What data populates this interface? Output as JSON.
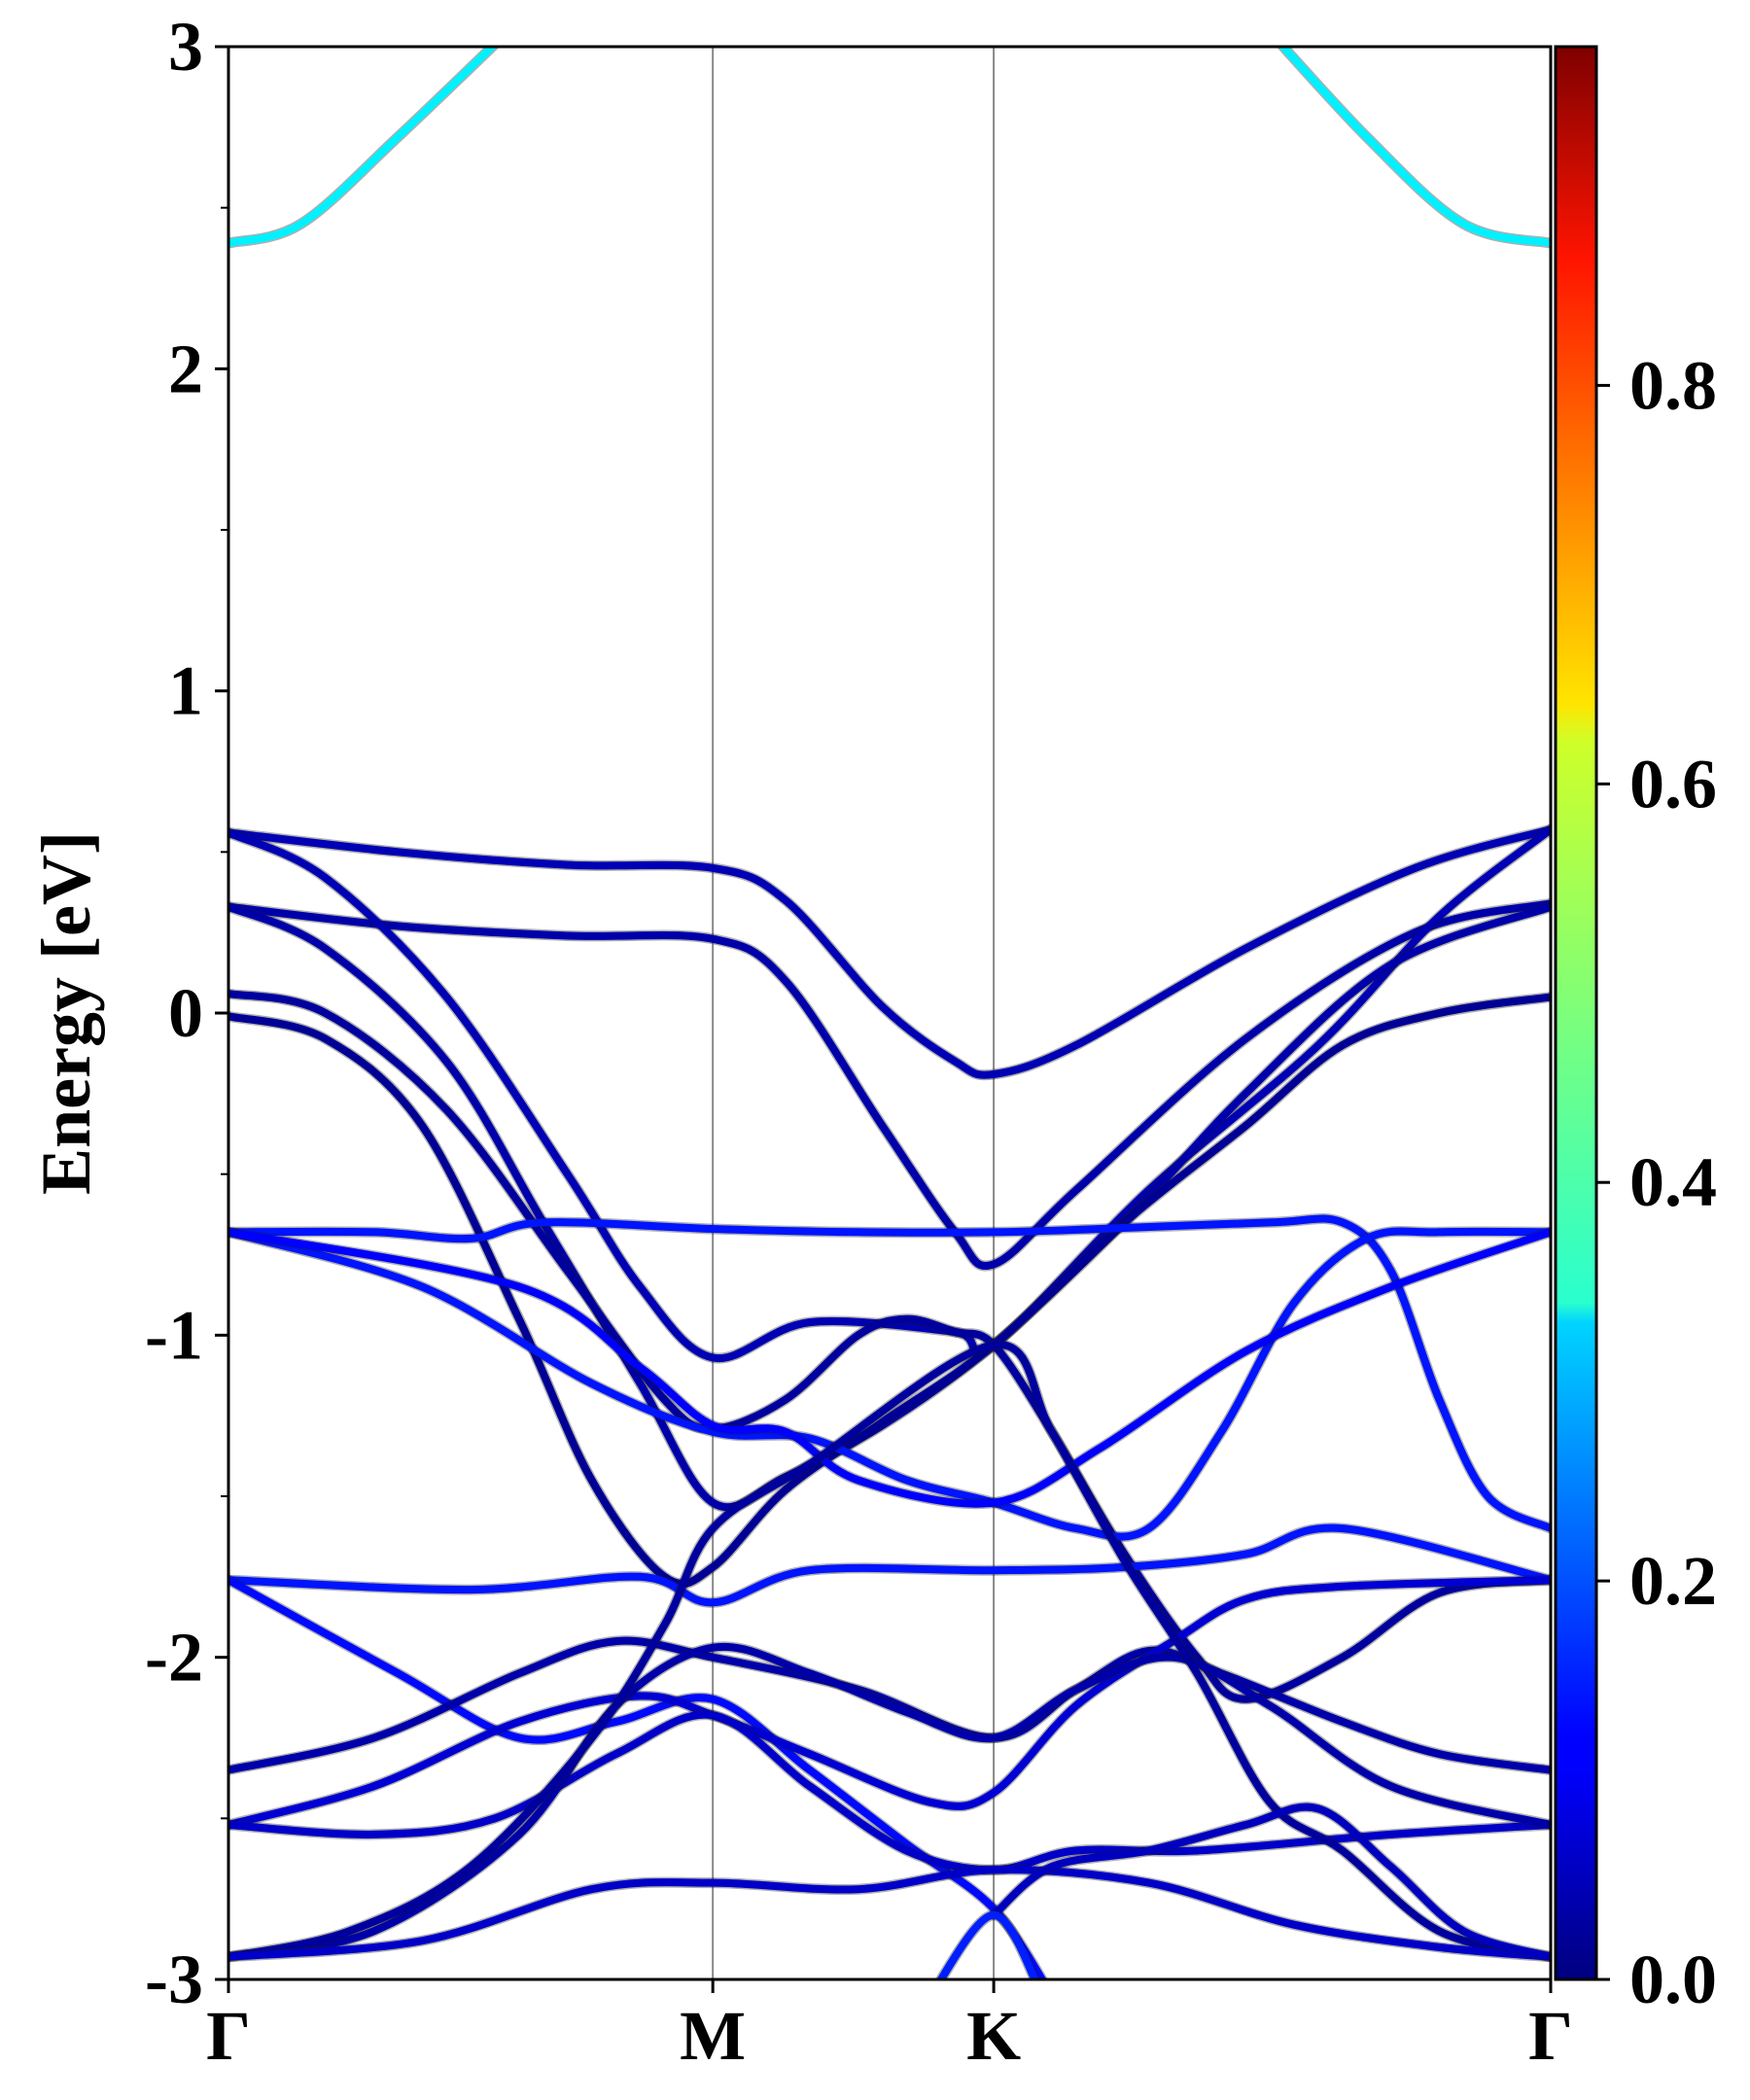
{
  "chart_data": {
    "type": "line",
    "title": "",
    "xlabel": "",
    "ylabel": "Energy [eV]",
    "x_ticks": [
      "Γ",
      "M",
      "K",
      "Γ"
    ],
    "x_tick_positions": [
      0,
      1,
      1.58,
      2.73
    ],
    "xlim": [
      0,
      2.73
    ],
    "y_ticks": [
      "3",
      "2",
      "1",
      "0",
      "-1",
      "-2",
      "-3"
    ],
    "ylim": [
      -3,
      3
    ],
    "colorbar": {
      "ticks": [
        "0.0",
        "0.2",
        "0.4",
        "0.6",
        "0.8"
      ],
      "range": [
        0,
        0.97
      ],
      "colormap": "jet"
    },
    "series": [
      {
        "w": 0.35,
        "points": [
          [
            0,
            2.39
          ],
          [
            0.15,
            2.45
          ],
          [
            0.35,
            2.72
          ],
          [
            0.6,
            3.08
          ]
        ]
      },
      {
        "w": 0.35,
        "points": [
          [
            2.13,
            3.08
          ],
          [
            2.35,
            2.72
          ],
          [
            2.55,
            2.45
          ],
          [
            2.73,
            2.39
          ]
        ]
      },
      {
        "w": 0.05,
        "points": [
          [
            0,
            0.56
          ],
          [
            0.35,
            0.5
          ],
          [
            0.7,
            0.46
          ],
          [
            1,
            0.45
          ],
          [
            1.15,
            0.35
          ],
          [
            1.35,
            0.02
          ],
          [
            1.5,
            -0.15
          ],
          [
            1.58,
            -0.19
          ],
          [
            1.75,
            -0.1
          ],
          [
            2.1,
            0.2
          ],
          [
            2.45,
            0.45
          ],
          [
            2.73,
            0.57
          ]
        ]
      },
      {
        "w": 0.04,
        "points": [
          [
            0,
            0.33
          ],
          [
            0.35,
            0.27
          ],
          [
            0.7,
            0.24
          ],
          [
            1,
            0.23
          ],
          [
            1.15,
            0.1
          ],
          [
            1.35,
            -0.35
          ],
          [
            1.5,
            -0.68
          ],
          [
            1.58,
            -0.78
          ],
          [
            1.75,
            -0.55
          ],
          [
            2.1,
            -0.08
          ],
          [
            2.45,
            0.25
          ],
          [
            2.73,
            0.34
          ]
        ]
      },
      {
        "w": 0.05,
        "points": [
          [
            0,
            0.56
          ],
          [
            0.2,
            0.42
          ],
          [
            0.45,
            0.05
          ],
          [
            0.7,
            -0.5
          ],
          [
            0.85,
            -0.85
          ],
          [
            1,
            -1.07
          ],
          [
            1.2,
            -0.96
          ],
          [
            1.5,
            -0.99
          ],
          [
            1.58,
            -1.03
          ],
          [
            1.9,
            -0.55
          ],
          [
            2.25,
            -0.1
          ],
          [
            2.5,
            0.3
          ],
          [
            2.73,
            0.57
          ]
        ]
      },
      {
        "w": 0.04,
        "points": [
          [
            0,
            0.33
          ],
          [
            0.2,
            0.2
          ],
          [
            0.45,
            -0.15
          ],
          [
            0.65,
            -0.65
          ],
          [
            0.85,
            -1.15
          ],
          [
            1,
            -1.52
          ],
          [
            1.15,
            -1.44
          ],
          [
            1.35,
            -1.28
          ],
          [
            1.58,
            -1.03
          ],
          [
            1.85,
            -0.65
          ],
          [
            2.1,
            -0.25
          ],
          [
            2.4,
            0.15
          ],
          [
            2.73,
            0.33
          ]
        ]
      },
      {
        "w": 0.03,
        "points": [
          [
            0,
            0.06
          ],
          [
            0.2,
            0.0
          ],
          [
            0.45,
            -0.3
          ],
          [
            0.7,
            -0.8
          ],
          [
            0.9,
            -1.2
          ],
          [
            1,
            -1.29
          ],
          [
            1.15,
            -1.2
          ],
          [
            1.3,
            -1.0
          ],
          [
            1.4,
            -0.95
          ],
          [
            1.5,
            -0.99
          ],
          [
            1.58,
            -1.03
          ],
          [
            1.7,
            -1.3
          ],
          [
            1.85,
            -1.68
          ],
          [
            2.0,
            -2.0
          ],
          [
            2.1,
            -2.13
          ],
          [
            2.3,
            -2.0
          ],
          [
            2.5,
            -1.8
          ],
          [
            2.73,
            -1.76
          ]
        ]
      },
      {
        "w": 0.02,
        "points": [
          [
            0,
            -0.01
          ],
          [
            0.2,
            -0.08
          ],
          [
            0.4,
            -0.35
          ],
          [
            0.6,
            -0.95
          ],
          [
            0.75,
            -1.45
          ],
          [
            0.9,
            -1.75
          ],
          [
            1,
            -1.72
          ],
          [
            1.15,
            -1.48
          ],
          [
            1.35,
            -1.27
          ],
          [
            1.58,
            -1.03
          ],
          [
            1.85,
            -0.65
          ],
          [
            2.1,
            -0.35
          ],
          [
            2.3,
            -0.1
          ],
          [
            2.5,
            0.0
          ],
          [
            2.73,
            0.05
          ]
        ]
      },
      {
        "w": 0.14,
        "points": [
          [
            0,
            -0.68
          ],
          [
            0.3,
            -0.68
          ],
          [
            0.5,
            -0.7
          ],
          [
            0.65,
            -0.65
          ],
          [
            1,
            -0.67
          ],
          [
            1.3,
            -0.68
          ],
          [
            1.58,
            -0.68
          ],
          [
            1.8,
            -0.67
          ],
          [
            2.15,
            -0.65
          ],
          [
            2.3,
            -0.65
          ],
          [
            2.4,
            -0.8
          ],
          [
            2.5,
            -1.2
          ],
          [
            2.6,
            -1.5
          ],
          [
            2.73,
            -1.6
          ]
        ]
      },
      {
        "w": 0.14,
        "points": [
          [
            0,
            -0.68
          ],
          [
            0.4,
            -0.85
          ],
          [
            0.75,
            -1.15
          ],
          [
            1,
            -1.3
          ],
          [
            1.2,
            -1.32
          ],
          [
            1.4,
            -1.45
          ],
          [
            1.58,
            -1.52
          ],
          [
            1.75,
            -1.6
          ],
          [
            1.9,
            -1.6
          ],
          [
            2.05,
            -1.3
          ],
          [
            2.2,
            -0.9
          ],
          [
            2.35,
            -0.7
          ],
          [
            2.5,
            -0.68
          ],
          [
            2.73,
            -0.68
          ]
        ]
      },
      {
        "w": 0.12,
        "points": [
          [
            0,
            -0.68
          ],
          [
            0.6,
            -0.85
          ],
          [
            0.85,
            -1.1
          ],
          [
            1,
            -1.28
          ],
          [
            1.15,
            -1.3
          ],
          [
            1.3,
            -1.45
          ],
          [
            1.58,
            -1.52
          ],
          [
            1.8,
            -1.35
          ],
          [
            2.1,
            -1.05
          ],
          [
            2.4,
            -0.85
          ],
          [
            2.73,
            -0.68
          ]
        ]
      },
      {
        "w": 0.14,
        "points": [
          [
            0,
            -1.76
          ],
          [
            0.5,
            -1.79
          ],
          [
            0.85,
            -1.75
          ],
          [
            1,
            -1.83
          ],
          [
            1.2,
            -1.73
          ],
          [
            1.58,
            -1.73
          ],
          [
            1.85,
            -1.72
          ],
          [
            2.1,
            -1.68
          ],
          [
            2.3,
            -1.6
          ],
          [
            2.73,
            -1.76
          ]
        ]
      },
      {
        "w": 0.13,
        "points": [
          [
            0,
            -1.76
          ],
          [
            0.35,
            -2.05
          ],
          [
            0.6,
            -2.25
          ],
          [
            0.8,
            -2.2
          ],
          [
            1,
            -2.13
          ],
          [
            1.2,
            -2.35
          ],
          [
            1.4,
            -2.58
          ],
          [
            1.58,
            -2.78
          ],
          [
            1.7,
            -3.05
          ]
        ]
      },
      {
        "w": 0.04,
        "points": [
          [
            0,
            -2.35
          ],
          [
            0.3,
            -2.25
          ],
          [
            0.6,
            -2.05
          ],
          [
            0.8,
            -1.95
          ],
          [
            1,
            -2.0
          ],
          [
            1.3,
            -2.1
          ],
          [
            1.58,
            -2.25
          ],
          [
            1.75,
            -2.1
          ],
          [
            1.9,
            -1.98
          ],
          [
            2.05,
            -2.05
          ],
          [
            2.3,
            -2.2
          ],
          [
            2.5,
            -2.3
          ],
          [
            2.73,
            -2.35
          ]
        ]
      },
      {
        "w": 0.08,
        "points": [
          [
            0,
            -2.52
          ],
          [
            0.3,
            -2.4
          ],
          [
            0.6,
            -2.2
          ],
          [
            0.85,
            -2.12
          ],
          [
            1,
            -2.18
          ],
          [
            1.2,
            -2.3
          ],
          [
            1.45,
            -2.45
          ],
          [
            1.58,
            -2.42
          ],
          [
            1.75,
            -2.15
          ],
          [
            1.95,
            -1.95
          ],
          [
            2.1,
            -1.82
          ],
          [
            2.3,
            -1.78
          ],
          [
            2.73,
            -1.76
          ]
        ]
      },
      {
        "w": 0.07,
        "points": [
          [
            0,
            -2.52
          ],
          [
            0.3,
            -2.55
          ],
          [
            0.55,
            -2.5
          ],
          [
            0.8,
            -2.3
          ],
          [
            1,
            -2.18
          ],
          [
            1.2,
            -2.4
          ],
          [
            1.4,
            -2.6
          ],
          [
            1.58,
            -2.66
          ],
          [
            1.75,
            -2.6
          ],
          [
            2.0,
            -2.6
          ],
          [
            2.4,
            -2.55
          ],
          [
            2.73,
            -2.52
          ]
        ]
      },
      {
        "w": 0.04,
        "points": [
          [
            0,
            -2.93
          ],
          [
            0.3,
            -2.85
          ],
          [
            0.6,
            -2.55
          ],
          [
            0.8,
            -2.15
          ],
          [
            1,
            -1.97
          ],
          [
            1.2,
            -2.05
          ],
          [
            1.4,
            -2.17
          ],
          [
            1.58,
            -2.25
          ],
          [
            1.75,
            -2.1
          ],
          [
            1.95,
            -2.0
          ],
          [
            2.15,
            -2.15
          ],
          [
            2.4,
            -2.4
          ],
          [
            2.73,
            -2.52
          ]
        ]
      },
      {
        "w": 0.03,
        "points": [
          [
            0,
            -2.93
          ],
          [
            0.25,
            -2.85
          ],
          [
            0.5,
            -2.65
          ],
          [
            0.75,
            -2.25
          ],
          [
            0.9,
            -1.9
          ],
          [
            1,
            -1.6
          ],
          [
            1.2,
            -1.4
          ],
          [
            1.58,
            -1.03
          ],
          [
            1.7,
            -1.3
          ],
          [
            1.85,
            -1.7
          ],
          [
            2.0,
            -2.05
          ],
          [
            2.15,
            -2.45
          ],
          [
            2.3,
            -2.6
          ],
          [
            2.5,
            -2.85
          ],
          [
            2.73,
            -2.93
          ]
        ]
      },
      {
        "w": 0.07,
        "points": [
          [
            0,
            -2.93
          ],
          [
            0.4,
            -2.88
          ],
          [
            0.75,
            -2.72
          ],
          [
            1,
            -2.7
          ],
          [
            1.3,
            -2.72
          ],
          [
            1.58,
            -2.66
          ],
          [
            1.9,
            -2.7
          ],
          [
            2.2,
            -2.83
          ],
          [
            2.5,
            -2.9
          ],
          [
            2.73,
            -2.93
          ]
        ]
      },
      {
        "w": 0.06,
        "points": [
          [
            1.58,
            -2.8
          ],
          [
            1.7,
            -2.65
          ],
          [
            1.9,
            -2.6
          ],
          [
            2.1,
            -2.52
          ],
          [
            2.25,
            -2.47
          ],
          [
            2.4,
            -2.65
          ],
          [
            2.55,
            -2.85
          ],
          [
            2.73,
            -2.93
          ]
        ]
      },
      {
        "w": 0.15,
        "points": [
          [
            1.45,
            -3.05
          ],
          [
            1.58,
            -2.8
          ],
          [
            1.68,
            -3.05
          ]
        ]
      }
    ]
  }
}
